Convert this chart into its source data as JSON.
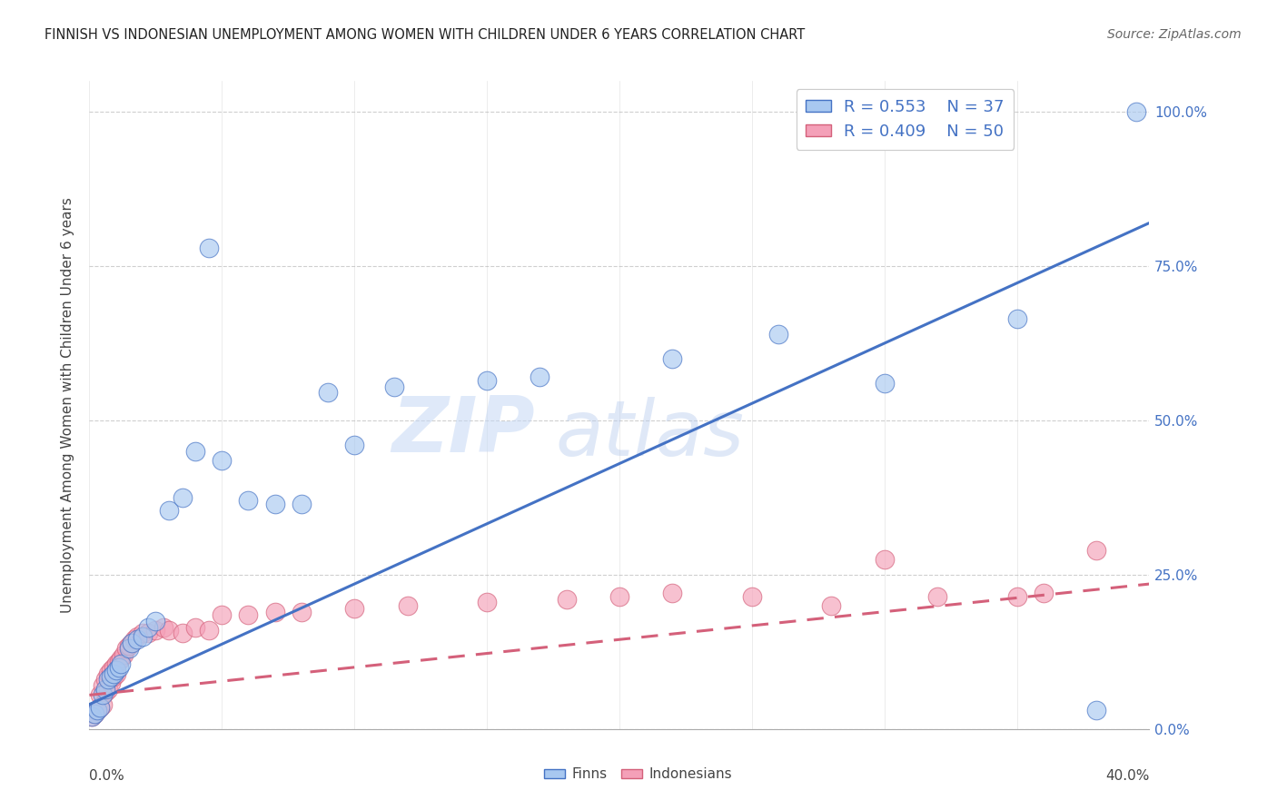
{
  "title": "FINNISH VS INDONESIAN UNEMPLOYMENT AMONG WOMEN WITH CHILDREN UNDER 6 YEARS CORRELATION CHART",
  "source": "Source: ZipAtlas.com",
  "ylabel": "Unemployment Among Women with Children Under 6 years",
  "legend_finn_R": "R = 0.553",
  "legend_finn_N": "N = 37",
  "legend_indo_R": "R = 0.409",
  "legend_indo_N": "N = 50",
  "finn_color": "#A8C8F0",
  "indo_color": "#F4A0B8",
  "finn_line_color": "#4472C4",
  "indo_line_color": "#D4607A",
  "watermark_top": "ZIP",
  "watermark_bot": "atlas",
  "finn_x": [
    0.001,
    0.002,
    0.003,
    0.004,
    0.005,
    0.006,
    0.007,
    0.008,
    0.009,
    0.01,
    0.011,
    0.012,
    0.015,
    0.016,
    0.018,
    0.02,
    0.022,
    0.025,
    0.03,
    0.035,
    0.04,
    0.045,
    0.05,
    0.06,
    0.07,
    0.08,
    0.09,
    0.1,
    0.115,
    0.15,
    0.17,
    0.22,
    0.26,
    0.3,
    0.35,
    0.38,
    0.395
  ],
  "finn_y": [
    0.02,
    0.025,
    0.03,
    0.035,
    0.055,
    0.065,
    0.08,
    0.085,
    0.09,
    0.095,
    0.1,
    0.105,
    0.13,
    0.14,
    0.145,
    0.15,
    0.165,
    0.175,
    0.355,
    0.375,
    0.45,
    0.78,
    0.435,
    0.37,
    0.365,
    0.365,
    0.545,
    0.46,
    0.555,
    0.565,
    0.57,
    0.6,
    0.64,
    0.56,
    0.665,
    0.03,
    1.0
  ],
  "indo_x": [
    0.001,
    0.002,
    0.003,
    0.004,
    0.004,
    0.005,
    0.005,
    0.006,
    0.006,
    0.007,
    0.007,
    0.008,
    0.008,
    0.009,
    0.009,
    0.01,
    0.01,
    0.011,
    0.012,
    0.013,
    0.014,
    0.015,
    0.016,
    0.017,
    0.018,
    0.02,
    0.022,
    0.025,
    0.028,
    0.03,
    0.035,
    0.04,
    0.045,
    0.05,
    0.06,
    0.07,
    0.08,
    0.1,
    0.12,
    0.15,
    0.18,
    0.2,
    0.22,
    0.25,
    0.28,
    0.3,
    0.32,
    0.35,
    0.36,
    0.38
  ],
  "indo_y": [
    0.02,
    0.025,
    0.03,
    0.035,
    0.055,
    0.04,
    0.07,
    0.06,
    0.08,
    0.065,
    0.09,
    0.075,
    0.095,
    0.085,
    0.1,
    0.09,
    0.105,
    0.11,
    0.115,
    0.12,
    0.13,
    0.135,
    0.14,
    0.145,
    0.15,
    0.155,
    0.155,
    0.16,
    0.165,
    0.16,
    0.155,
    0.165,
    0.16,
    0.185,
    0.185,
    0.19,
    0.19,
    0.195,
    0.2,
    0.205,
    0.21,
    0.215,
    0.22,
    0.215,
    0.2,
    0.275,
    0.215,
    0.215,
    0.22,
    0.29
  ],
  "finn_line_x": [
    0.0,
    0.4
  ],
  "finn_line_y": [
    0.04,
    0.82
  ],
  "indo_line_x": [
    0.0,
    0.4
  ],
  "indo_line_y": [
    0.055,
    0.235
  ],
  "xlim": [
    0.0,
    0.4
  ],
  "ylim": [
    0.0,
    1.05
  ],
  "ytick_vals": [
    0.0,
    0.25,
    0.5,
    0.75,
    1.0
  ],
  "ytick_labels": [
    "0.0%",
    "25.0%",
    "50.0%",
    "75.0%",
    "100.0%"
  ],
  "background_color": "#FFFFFF",
  "grid_color": "#BBBBBB"
}
